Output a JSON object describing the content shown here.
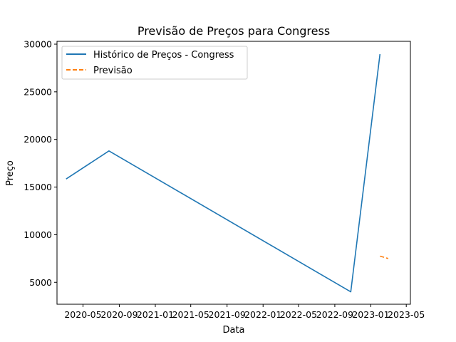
{
  "chart_data": {
    "type": "line",
    "title": "Previsão de Preços para Congress",
    "xlabel": "Data",
    "ylabel": "Preço",
    "xlim": [
      "2020-02-03",
      "2023-05-15"
    ],
    "ylim": [
      2700,
      30300
    ],
    "x_ticks": [
      "2020-05-01",
      "2020-09-01",
      "2021-01-01",
      "2021-05-01",
      "2021-09-01",
      "2022-01-01",
      "2022-05-01",
      "2022-09-01",
      "2023-01-01",
      "2023-05-01"
    ],
    "x_tick_labels": [
      "2020-05",
      "2020-09",
      "2021-01",
      "2021-05",
      "2021-09",
      "2022-01",
      "2022-05",
      "2022-09",
      "2023-01",
      "2023-05"
    ],
    "y_ticks": [
      5000,
      10000,
      15000,
      20000,
      25000,
      30000
    ],
    "y_tick_labels": [
      "5000",
      "10000",
      "15000",
      "20000",
      "25000",
      "30000"
    ],
    "grid": false,
    "legend_position": "top-left",
    "series": [
      {
        "name": "Histórico de Preços - Congress",
        "color": "#1f77b4",
        "style": "solid",
        "points": [
          {
            "x": "2020-03-05",
            "y": 15850
          },
          {
            "x": "2020-07-28",
            "y": 18800
          },
          {
            "x": "2022-10-25",
            "y": 4000
          },
          {
            "x": "2023-02-01",
            "y": 28950
          }
        ]
      },
      {
        "name": "Previsão",
        "color": "#ff7f0e",
        "style": "dashed",
        "points": [
          {
            "x": "2023-02-01",
            "y": 7750
          },
          {
            "x": "2023-03-01",
            "y": 7500
          }
        ]
      }
    ]
  }
}
